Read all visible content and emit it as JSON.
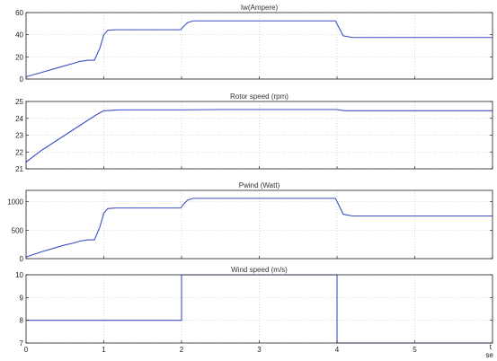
{
  "chart_data": [
    {
      "type": "line",
      "title": "Iw(Ampere)",
      "xlim": [
        0,
        6
      ],
      "ylim": [
        0,
        60
      ],
      "yticks": [
        0,
        20,
        40,
        60
      ],
      "grid": true,
      "color": "#3b4fc4",
      "x": [
        0,
        0.2,
        0.4,
        0.5,
        0.6,
        0.7,
        0.8,
        0.88,
        0.95,
        1.0,
        1.05,
        1.15,
        1.5,
        1.99,
        2.02,
        2.08,
        2.15,
        3.0,
        3.5,
        3.98,
        4.02,
        4.08,
        4.2,
        5.0,
        6.0
      ],
      "y": [
        2,
        6,
        10,
        12,
        14,
        16,
        17,
        17,
        28,
        40,
        44,
        44.5,
        44.5,
        44.5,
        47,
        51,
        52.5,
        52.5,
        52.5,
        52.5,
        47,
        39,
        37.5,
        37.5,
        37.5
      ]
    },
    {
      "type": "line",
      "title": "Rotor speed (rpm)",
      "xlim": [
        0,
        6
      ],
      "ylim": [
        21,
        25
      ],
      "yticks": [
        21,
        22,
        23,
        24,
        25
      ],
      "grid": true,
      "color": "#3b4fc4",
      "x": [
        0,
        0.2,
        0.4,
        0.6,
        0.8,
        0.9,
        1.0,
        1.2,
        1.5,
        2.0,
        2.5,
        3.0,
        4.0,
        4.1,
        5.0,
        6.0
      ],
      "y": [
        21.4,
        22.1,
        22.7,
        23.3,
        23.9,
        24.2,
        24.45,
        24.5,
        24.5,
        24.5,
        24.52,
        24.52,
        24.52,
        24.45,
        24.45,
        24.45
      ]
    },
    {
      "type": "line",
      "title": "Pwind (Watt)",
      "xlim": [
        0,
        6
      ],
      "ylim": [
        0,
        1200
      ],
      "yticks": [
        0,
        500,
        1000
      ],
      "grid": true,
      "color": "#3b4fc4",
      "x": [
        0,
        0.2,
        0.4,
        0.5,
        0.6,
        0.7,
        0.8,
        0.88,
        0.95,
        1.0,
        1.05,
        1.15,
        1.5,
        1.99,
        2.02,
        2.08,
        2.15,
        3.0,
        3.5,
        3.98,
        4.02,
        4.08,
        4.2,
        5.0,
        6.0
      ],
      "y": [
        30,
        120,
        200,
        240,
        270,
        310,
        330,
        330,
        560,
        800,
        880,
        890,
        890,
        890,
        950,
        1030,
        1060,
        1060,
        1060,
        1060,
        950,
        780,
        750,
        750,
        750
      ]
    },
    {
      "type": "line",
      "title": "Wind speed (m/s)",
      "xlim": [
        0,
        6
      ],
      "ylim": [
        7,
        10
      ],
      "yticks": [
        7,
        8,
        9,
        10
      ],
      "xticks": [
        0,
        1,
        2,
        3,
        4,
        5
      ],
      "xlabel": "t se",
      "grid": true,
      "color": "#3b4fc4",
      "x": [
        0,
        2,
        2,
        4,
        4,
        6
      ],
      "y": [
        8,
        8,
        10,
        10,
        7,
        7
      ]
    }
  ]
}
